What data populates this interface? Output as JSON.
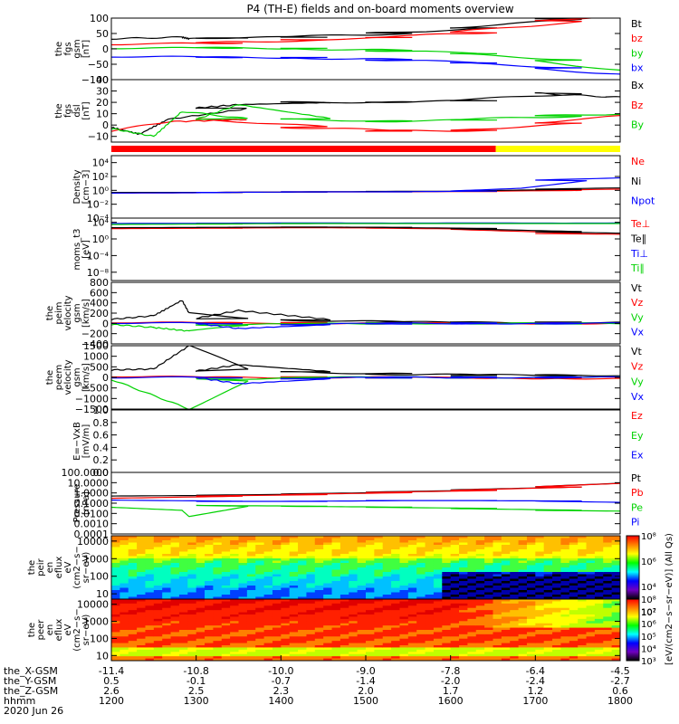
{
  "title": "P4 (TH-E) fields and on-board moments overview",
  "colors": {
    "black": "#000000",
    "red": "#ff0000",
    "green": "#00d200",
    "blue": "#0000ff",
    "yellow": "#ffff00",
    "bar_red": "#ff0000"
  },
  "time_axis": {
    "hours": [
      1200,
      1300,
      1400,
      1500,
      1600,
      1700,
      1800
    ],
    "row_labels": [
      "the_X-GSM",
      "the_Y-GSM",
      "the_Z-GSM",
      "hhmm"
    ],
    "x_gsm": [
      "-11.4",
      "-10.8",
      "-10.0",
      "-9.0",
      "-7.8",
      "-6.4",
      "-4.5"
    ],
    "y_gsm": [
      "0.5",
      "-0.1",
      "-0.7",
      "-1.4",
      "-2.0",
      "-2.4",
      "-2.7"
    ],
    "z_gsm": [
      "2.6",
      "2.5",
      "2.3",
      "2.0",
      "1.7",
      "1.2",
      "0.6"
    ],
    "hhmm": [
      "1200",
      "1300",
      "1400",
      "1500",
      "1600",
      "1700",
      "1800"
    ],
    "date": "2020 Jun 26"
  },
  "mode_bar": {
    "segments": [
      {
        "from": 1200,
        "to": 1632,
        "color": "red"
      },
      {
        "from": 1632,
        "to": 1800,
        "color": "yellow"
      }
    ]
  },
  "chart_data": [
    {
      "type": "line",
      "id": "fgs_gsm",
      "ylabel": [
        "the",
        "fgs",
        "gsm",
        "[nT]"
      ],
      "ylim": [
        -100,
        100
      ],
      "log": false,
      "yticks": [
        {
          "v": 100,
          "t": "100"
        },
        {
          "v": 50,
          "t": "50"
        },
        {
          "v": 0,
          "t": "0"
        },
        {
          "v": -50,
          "t": "−50"
        },
        {
          "v": -100,
          "t": "−100"
        }
      ],
      "series": [
        {
          "name": "Bt",
          "color": "black",
          "x": [
            1200,
            1250,
            1255,
            1300,
            1400,
            1500,
            1600,
            1700,
            1800
          ],
          "y": [
            33,
            38,
            33,
            35,
            40,
            50,
            68,
            100,
            130
          ]
        },
        {
          "name": "bz",
          "color": "red",
          "x": [
            1200,
            1300,
            1400,
            1500,
            1600,
            1700,
            1800
          ],
          "y": [
            15,
            20,
            28,
            38,
            55,
            90,
            120
          ]
        },
        {
          "name": "by",
          "color": "green",
          "x": [
            1200,
            1300,
            1400,
            1500,
            1600,
            1700,
            1800
          ],
          "y": [
            2,
            4,
            0,
            -5,
            -15,
            -40,
            -90
          ]
        },
        {
          "name": "bx",
          "color": "blue",
          "x": [
            1200,
            1300,
            1400,
            1500,
            1600,
            1700,
            1800
          ],
          "y": [
            -25,
            -27,
            -30,
            -35,
            -45,
            -65,
            -95
          ]
        }
      ]
    },
    {
      "type": "line",
      "id": "fgs_dsl",
      "ylabel": [
        "the",
        "fgs",
        "dsl",
        "[nT]"
      ],
      "ylim": [
        -15,
        40
      ],
      "log": false,
      "yticks": [
        {
          "v": 40,
          "t": "40"
        },
        {
          "v": 30,
          "t": "30"
        },
        {
          "v": 20,
          "t": "20"
        },
        {
          "v": 10,
          "t": "10"
        },
        {
          "v": 0,
          "t": "0"
        },
        {
          "v": -10,
          "t": "−10"
        }
      ],
      "series": [
        {
          "name": "Bx",
          "color": "black",
          "x": [
            1200,
            1220,
            1240,
            1300,
            1330,
            1400,
            1500,
            1600,
            1700,
            1750,
            1800
          ],
          "y": [
            -2,
            -8,
            5,
            15,
            18,
            20,
            20,
            22,
            28,
            25,
            22
          ]
        },
        {
          "name": "Bz",
          "color": "red",
          "x": [
            1200,
            1240,
            1300,
            1400,
            1500,
            1600,
            1700,
            1800
          ],
          "y": [
            -5,
            3,
            5,
            -2,
            -5,
            -5,
            2,
            12
          ]
        },
        {
          "name": "By",
          "color": "green",
          "x": [
            1200,
            1230,
            1250,
            1300,
            1330,
            1400,
            1500,
            1600,
            1700,
            1800
          ],
          "y": [
            -3,
            -10,
            12,
            5,
            18,
            5,
            3,
            5,
            8,
            11
          ]
        }
      ]
    },
    {
      "type": "line",
      "id": "density",
      "ylabel": [
        "Density",
        "[cm−3]"
      ],
      "ylim": [
        0.0001,
        100000
      ],
      "log": true,
      "yticks": [
        {
          "v": 10000,
          "t": "10⁴"
        },
        {
          "v": 100,
          "t": "10²"
        },
        {
          "v": 1,
          "t": "10⁰"
        },
        {
          "v": 0.01,
          "t": "10⁻²"
        },
        {
          "v": 0.0001,
          "t": "10⁻⁴"
        }
      ],
      "series": [
        {
          "name": "Ne",
          "color": "red",
          "x": [
            1200,
            1300,
            1400,
            1500,
            1600,
            1700,
            1800
          ],
          "y": [
            0.4,
            0.5,
            0.6,
            0.6,
            0.7,
            1.0,
            2.0
          ]
        },
        {
          "name": "Ni",
          "color": "black",
          "x": [
            1200,
            1300,
            1400,
            1500,
            1600,
            1700,
            1800
          ],
          "y": [
            0.5,
            0.5,
            0.6,
            0.7,
            0.8,
            1.5,
            3.0
          ]
        },
        {
          "name": "Npot",
          "color": "blue",
          "x": [
            1200,
            1300,
            1400,
            1500,
            1600,
            1650,
            1700,
            1800
          ],
          "y": [
            0.4,
            0.5,
            0.6,
            0.6,
            0.8,
            2,
            30,
            100
          ]
        }
      ]
    },
    {
      "type": "line",
      "id": "moms_t3",
      "ylabel": [
        "moms_t3",
        "[eV]"
      ],
      "ylim": [
        1e-10,
        100000
      ],
      "log": true,
      "yticks": [
        {
          "v": 10000,
          "t": "10⁴"
        },
        {
          "v": 1,
          "t": "10⁰"
        },
        {
          "v": 0.0001,
          "t": "10⁻⁴"
        },
        {
          "v": 1e-08,
          "t": "10⁻⁸"
        }
      ],
      "series": [
        {
          "name": "Te⊥",
          "color": "red",
          "x": [
            1200,
            1300,
            1400,
            1500,
            1600,
            1700,
            1800
          ],
          "y": [
            300,
            400,
            500,
            400,
            200,
            20,
            10
          ]
        },
        {
          "name": "Te∥",
          "color": "black",
          "x": [
            1200,
            1300,
            1400,
            1500,
            1600,
            1700,
            1800
          ],
          "y": [
            500,
            600,
            700,
            600,
            300,
            50,
            15
          ]
        },
        {
          "name": "Ti⊥",
          "color": "blue",
          "x": [
            1200,
            1300,
            1400,
            1500,
            1600,
            1700,
            1800
          ],
          "y": [
            5000,
            6000,
            7000,
            6000,
            7000,
            6000,
            7000
          ]
        },
        {
          "name": "Ti∥",
          "color": "green",
          "x": [
            1200,
            1300,
            1400,
            1500,
            1600,
            1700,
            1800
          ],
          "y": [
            3000,
            4000,
            5000,
            5000,
            5000,
            5000,
            5000
          ]
        }
      ]
    },
    {
      "type": "line",
      "id": "peim_velocity",
      "ylabel": [
        "the",
        "peim",
        "velocity",
        "gsm",
        "[km/s]"
      ],
      "ylim": [
        -400,
        800
      ],
      "log": false,
      "yticks": [
        {
          "v": 800,
          "t": "800"
        },
        {
          "v": 600,
          "t": "600"
        },
        {
          "v": 400,
          "t": "400"
        },
        {
          "v": 200,
          "t": "200"
        },
        {
          "v": 0,
          "t": "0"
        },
        {
          "v": -200,
          "t": "−200"
        },
        {
          "v": -400,
          "t": "−400"
        }
      ],
      "series": [
        {
          "name": "Vt",
          "color": "black",
          "x": [
            1200,
            1230,
            1250,
            1255,
            1300,
            1330,
            1400,
            1500,
            1600,
            1700,
            1800
          ],
          "y": [
            80,
            150,
            450,
            200,
            100,
            250,
            60,
            30,
            20,
            15,
            15
          ]
        },
        {
          "name": "Vz",
          "color": "red",
          "x": [
            1200,
            1300,
            1400,
            1500,
            1600,
            1700,
            1800
          ],
          "y": [
            20,
            10,
            5,
            0,
            0,
            0,
            0
          ]
        },
        {
          "name": "Vy",
          "color": "green",
          "x": [
            1200,
            1230,
            1255,
            1300,
            1400,
            1500,
            1600,
            1700,
            1800
          ],
          "y": [
            -20,
            -80,
            -150,
            -30,
            -10,
            0,
            0,
            0,
            0
          ]
        },
        {
          "name": "Vx",
          "color": "blue",
          "x": [
            1200,
            1300,
            1330,
            1400,
            1500,
            1600,
            1700,
            1800
          ],
          "y": [
            10,
            0,
            -100,
            -20,
            0,
            0,
            0,
            0
          ]
        }
      ]
    },
    {
      "type": "line",
      "id": "peem_velocity",
      "ylabel": [
        "the",
        "peem",
        "velocity",
        "gsm",
        "[km/s]"
      ],
      "ylim": [
        -1500,
        1500
      ],
      "log": false,
      "yticks": [
        {
          "v": 1500,
          "t": "1500"
        },
        {
          "v": 1000,
          "t": "1000"
        },
        {
          "v": 500,
          "t": "500"
        },
        {
          "v": 0,
          "t": "0"
        },
        {
          "v": -500,
          "t": "−500"
        },
        {
          "v": -1000,
          "t": "−1000"
        },
        {
          "v": -1500,
          "t": "−1500"
        }
      ],
      "series": [
        {
          "name": "Vt",
          "color": "black",
          "x": [
            1200,
            1230,
            1255,
            1300,
            1330,
            1400,
            1500,
            1600,
            1700,
            1800
          ],
          "y": [
            350,
            400,
            1500,
            300,
            600,
            250,
            150,
            120,
            100,
            100
          ]
        },
        {
          "name": "Vz",
          "color": "red",
          "x": [
            1200,
            1300,
            1400,
            1500,
            1600,
            1700,
            1800
          ],
          "y": [
            50,
            0,
            0,
            0,
            -20,
            -50,
            -50
          ]
        },
        {
          "name": "Vy",
          "color": "green",
          "x": [
            1200,
            1255,
            1300,
            1400,
            1500,
            1600,
            1700,
            1800
          ],
          "y": [
            -100,
            -1500,
            -100,
            0,
            0,
            0,
            0,
            0
          ]
        },
        {
          "name": "Vx",
          "color": "blue",
          "x": [
            1200,
            1300,
            1330,
            1400,
            1500,
            1600,
            1700,
            1800
          ],
          "y": [
            0,
            0,
            -300,
            -50,
            0,
            0,
            0,
            0
          ]
        }
      ]
    },
    {
      "type": "line",
      "id": "efield",
      "ylabel": [
        "E=−VxB",
        "[mV/m]"
      ],
      "ylim": [
        0,
        1
      ],
      "log": false,
      "yticks": [
        {
          "v": 1.0,
          "t": "1.0"
        },
        {
          "v": 0.8,
          "t": "0.8"
        },
        {
          "v": 0.6,
          "t": "0.6"
        },
        {
          "v": 0.4,
          "t": "0.4"
        },
        {
          "v": 0.2,
          "t": "0.2"
        },
        {
          "v": 0,
          "t": "0.0"
        }
      ],
      "series": [
        {
          "name": "Ez",
          "color": "red",
          "x": [],
          "y": []
        },
        {
          "name": "Ey",
          "color": "green",
          "x": [],
          "y": []
        },
        {
          "name": "Ex",
          "color": "blue",
          "x": [],
          "y": []
        }
      ]
    },
    {
      "type": "line",
      "id": "pressure",
      "ylabel": [
        "Pressure",
        "[nPa]"
      ],
      "ylim": [
        0.0001,
        100
      ],
      "log": true,
      "yticks": [
        {
          "v": 100,
          "t": "100.0000"
        },
        {
          "v": 10,
          "t": "10.0000"
        },
        {
          "v": 1,
          "t": "1.0000"
        },
        {
          "v": 0.1,
          "t": "0.1000"
        },
        {
          "v": 0.01,
          "t": "0.0100"
        },
        {
          "v": 0.001,
          "t": "0.0010"
        },
        {
          "v": 0.0001,
          "t": "0.0001"
        }
      ],
      "series": [
        {
          "name": "Pt",
          "color": "black",
          "x": [
            1200,
            1300,
            1400,
            1500,
            1600,
            1700,
            1800
          ],
          "y": [
            0.5,
            0.6,
            0.8,
            1.2,
            2.0,
            4.0,
            15
          ]
        },
        {
          "name": "Pb",
          "color": "red",
          "x": [
            1200,
            1300,
            1400,
            1500,
            1600,
            1700,
            1800
          ],
          "y": [
            0.3,
            0.5,
            0.7,
            1.1,
            1.8,
            4.0,
            14
          ]
        },
        {
          "name": "Pe",
          "color": "green",
          "x": [
            1200,
            1250,
            1255,
            1300,
            1400,
            1500,
            1600,
            1700,
            1800
          ],
          "y": [
            0.04,
            0.02,
            0.005,
            0.06,
            0.05,
            0.04,
            0.03,
            0.02,
            0.015
          ]
        },
        {
          "name": "Pi",
          "color": "blue",
          "x": [
            1200,
            1300,
            1400,
            1500,
            1600,
            1700,
            1800
          ],
          "y": [
            0.2,
            0.15,
            0.15,
            0.18,
            0.18,
            0.16,
            0.1
          ]
        }
      ]
    },
    {
      "type": "heatmap",
      "id": "peir_en_eflux",
      "ylabel": [
        "the",
        "peir",
        "en",
        "eflux",
        "eV",
        "(cm2−s−",
        "sr−eV)"
      ],
      "ylim": [
        5,
        20000
      ],
      "log": true,
      "yticks": [
        {
          "v": 10000,
          "t": "10000"
        },
        {
          "v": 1000,
          "t": "1000"
        },
        {
          "v": 100,
          "t": "100"
        },
        {
          "v": 10,
          "t": "10"
        }
      ],
      "colorbar": {
        "min": 1000,
        "max": 100000000,
        "ticks": [
          {
            "v": 100000000,
            "t": "10⁸"
          },
          {
            "v": 1000000,
            "t": "10⁶"
          },
          {
            "v": 10000,
            "t": "10⁴"
          },
          {
            "v": 100,
            "t": "10²"
          }
        ]
      }
    },
    {
      "type": "heatmap",
      "id": "peer_en_eflux",
      "ylabel": [
        "the",
        "peer",
        "en",
        "eflux",
        "eV",
        "(cm2−s−",
        "sr−eV)"
      ],
      "ylim": [
        5,
        20000
      ],
      "log": true,
      "yticks": [
        {
          "v": 10000,
          "t": "10000"
        },
        {
          "v": 1000,
          "t": "1000"
        },
        {
          "v": 100,
          "t": "100"
        },
        {
          "v": 10,
          "t": "10"
        }
      ],
      "colorbar": {
        "min": 1000,
        "max": 100000000,
        "ticks": [
          {
            "v": 100000000,
            "t": "10⁸"
          },
          {
            "v": 10000000,
            "t": "10⁷"
          },
          {
            "v": 1000000,
            "t": "10⁶"
          },
          {
            "v": 100000,
            "t": "10⁵"
          },
          {
            "v": 10000,
            "t": "10⁴"
          },
          {
            "v": 1000,
            "t": "10³"
          }
        ]
      }
    }
  ],
  "colorbar_label": "[eV/(cm2−s−sr−eV)] (All Qs)",
  "spectrogram_ids": [
    "the_peir_en_eflux",
    "the_peer_en_eflux"
  ]
}
